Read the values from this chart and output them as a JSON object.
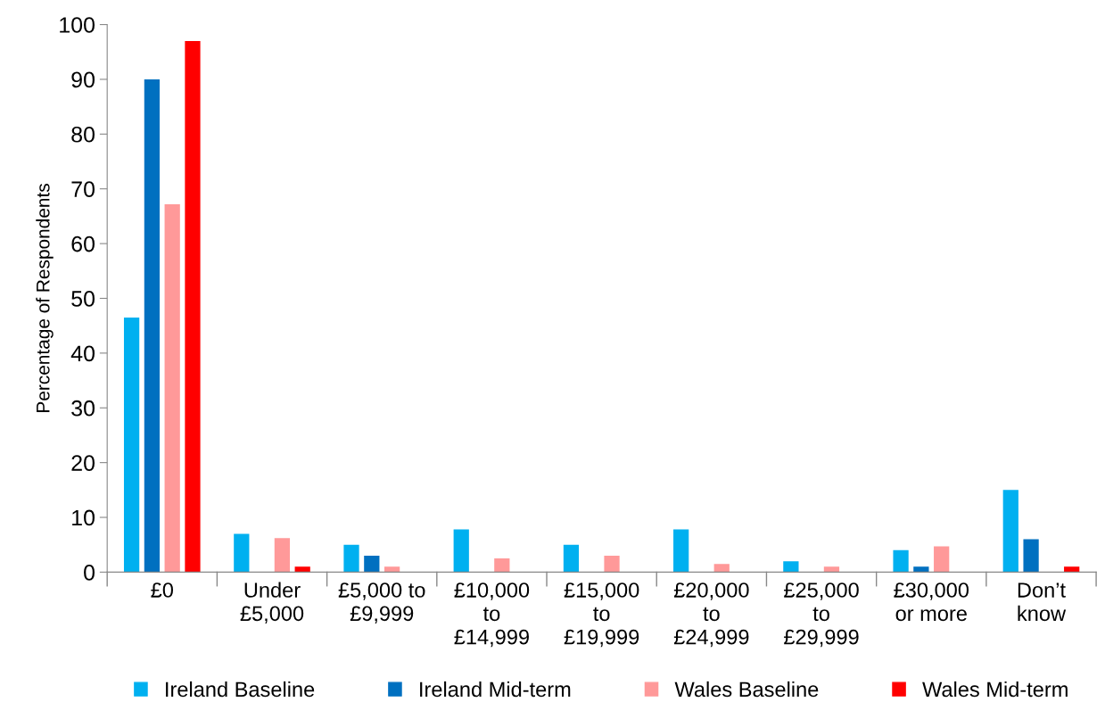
{
  "chart_data": {
    "type": "bar",
    "ylabel": "Percentage of Respondents",
    "categories": [
      "£0",
      "Under\n£5,000",
      "£5,000 to\n£9,999",
      "£10,000\nto\n£14,999",
      "£15,000\nto\n£19,999",
      "£20,000\nto\n£24,999",
      "£25,000\nto\n£29,999",
      "£30,000\nor more",
      "Don’t\nknow"
    ],
    "series": [
      {
        "name": "Ireland Baseline",
        "color": "#00b0f0",
        "values": [
          46.5,
          7,
          5,
          7.8,
          5,
          7.8,
          2,
          4,
          15
        ]
      },
      {
        "name": "Ireland Mid-term",
        "color": "#0070c0",
        "values": [
          90,
          0,
          3,
          0,
          0,
          0,
          0,
          1,
          6
        ]
      },
      {
        "name": "Wales Baseline",
        "color": "#ff9999",
        "values": [
          67.2,
          6.2,
          1,
          2.5,
          3,
          1.5,
          1,
          4.7,
          0
        ]
      },
      {
        "name": "Wales Mid-term",
        "color": "#ff0000",
        "values": [
          97,
          1,
          0,
          0,
          0,
          0,
          0,
          0,
          1
        ]
      }
    ],
    "ylim": [
      0,
      100
    ],
    "yticks": [
      0,
      10,
      20,
      30,
      40,
      50,
      60,
      70,
      80,
      90,
      100
    ],
    "grid": false,
    "legend": "bottom"
  }
}
